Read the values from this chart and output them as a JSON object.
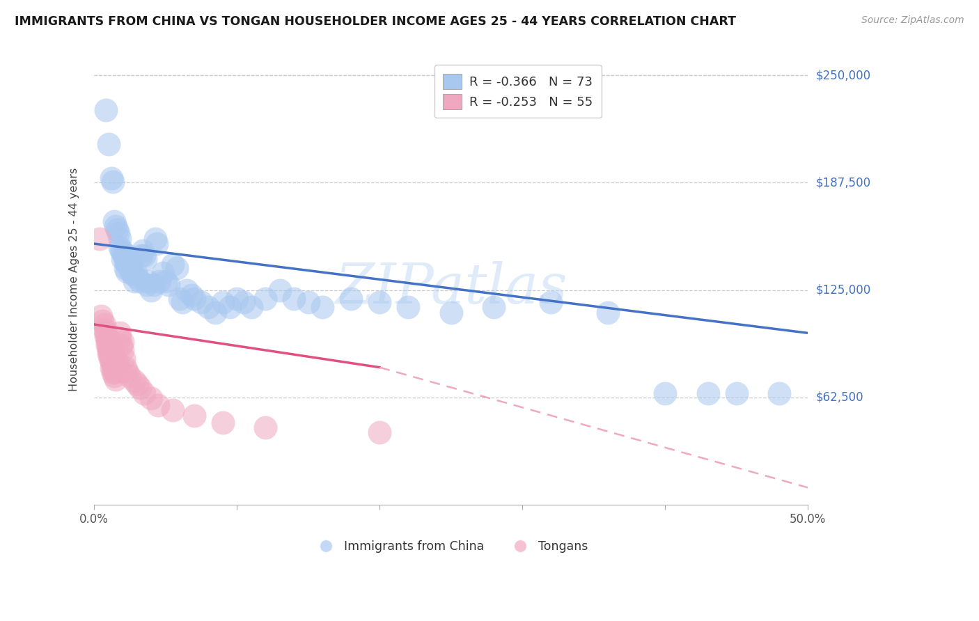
{
  "title": "IMMIGRANTS FROM CHINA VS TONGAN HOUSEHOLDER INCOME AGES 25 - 44 YEARS CORRELATION CHART",
  "source": "Source: ZipAtlas.com",
  "ylabel": "Householder Income Ages 25 - 44 years",
  "ytick_labels": [
    "$62,500",
    "$125,000",
    "$187,500",
    "$250,000"
  ],
  "ytick_values": [
    62500,
    125000,
    187500,
    250000
  ],
  "ylim": [
    0,
    262500
  ],
  "xlim": [
    0.0,
    0.5
  ],
  "watermark": "ZIPatlas",
  "legend_china_R": "-0.366",
  "legend_china_N": "73",
  "legend_tonga_R": "-0.253",
  "legend_tonga_N": "55",
  "china_color": "#a8c8f0",
  "tonga_color": "#f0a8c0",
  "china_line_color": "#4472c4",
  "tonga_line_color": "#e05080",
  "tonga_line_dashed_color": "#f0a8c0",
  "china_points": [
    [
      0.008,
      230000
    ],
    [
      0.01,
      210000
    ],
    [
      0.012,
      190000
    ],
    [
      0.013,
      188000
    ],
    [
      0.014,
      165000
    ],
    [
      0.015,
      162000
    ],
    [
      0.016,
      160000
    ],
    [
      0.017,
      158000
    ],
    [
      0.018,
      155000
    ],
    [
      0.018,
      150000
    ],
    [
      0.019,
      148000
    ],
    [
      0.02,
      147000
    ],
    [
      0.02,
      143000
    ],
    [
      0.021,
      145000
    ],
    [
      0.022,
      142000
    ],
    [
      0.022,
      138000
    ],
    [
      0.023,
      140000
    ],
    [
      0.023,
      136000
    ],
    [
      0.024,
      145000
    ],
    [
      0.025,
      143000
    ],
    [
      0.025,
      138000
    ],
    [
      0.026,
      140000
    ],
    [
      0.026,
      136000
    ],
    [
      0.027,
      134000
    ],
    [
      0.028,
      130000
    ],
    [
      0.029,
      135000
    ],
    [
      0.03,
      132000
    ],
    [
      0.032,
      130000
    ],
    [
      0.033,
      145000
    ],
    [
      0.034,
      148000
    ],
    [
      0.035,
      145000
    ],
    [
      0.036,
      143000
    ],
    [
      0.037,
      128000
    ],
    [
      0.038,
      130000
    ],
    [
      0.04,
      125000
    ],
    [
      0.042,
      128000
    ],
    [
      0.043,
      155000
    ],
    [
      0.044,
      152000
    ],
    [
      0.046,
      130000
    ],
    [
      0.048,
      135000
    ],
    [
      0.05,
      130000
    ],
    [
      0.052,
      128000
    ],
    [
      0.055,
      140000
    ],
    [
      0.058,
      138000
    ],
    [
      0.06,
      120000
    ],
    [
      0.062,
      118000
    ],
    [
      0.065,
      125000
    ],
    [
      0.068,
      122000
    ],
    [
      0.07,
      120000
    ],
    [
      0.075,
      118000
    ],
    [
      0.08,
      115000
    ],
    [
      0.085,
      112000
    ],
    [
      0.09,
      118000
    ],
    [
      0.095,
      115000
    ],
    [
      0.1,
      120000
    ],
    [
      0.105,
      118000
    ],
    [
      0.11,
      115000
    ],
    [
      0.12,
      120000
    ],
    [
      0.13,
      125000
    ],
    [
      0.14,
      120000
    ],
    [
      0.15,
      118000
    ],
    [
      0.16,
      115000
    ],
    [
      0.18,
      120000
    ],
    [
      0.2,
      118000
    ],
    [
      0.22,
      115000
    ],
    [
      0.25,
      112000
    ],
    [
      0.28,
      115000
    ],
    [
      0.32,
      118000
    ],
    [
      0.36,
      112000
    ],
    [
      0.4,
      65000
    ],
    [
      0.43,
      65000
    ],
    [
      0.45,
      65000
    ],
    [
      0.48,
      65000
    ]
  ],
  "tonga_points": [
    [
      0.004,
      155000
    ],
    [
      0.005,
      110000
    ],
    [
      0.006,
      107000
    ],
    [
      0.007,
      105000
    ],
    [
      0.007,
      102000
    ],
    [
      0.008,
      100000
    ],
    [
      0.008,
      98000
    ],
    [
      0.009,
      97000
    ],
    [
      0.009,
      95000
    ],
    [
      0.009,
      93000
    ],
    [
      0.01,
      95000
    ],
    [
      0.01,
      92000
    ],
    [
      0.01,
      90000
    ],
    [
      0.01,
      88000
    ],
    [
      0.011,
      95000
    ],
    [
      0.011,
      90000
    ],
    [
      0.011,
      87000
    ],
    [
      0.011,
      85000
    ],
    [
      0.012,
      90000
    ],
    [
      0.012,
      87000
    ],
    [
      0.012,
      83000
    ],
    [
      0.012,
      80000
    ],
    [
      0.013,
      87000
    ],
    [
      0.013,
      83000
    ],
    [
      0.013,
      80000
    ],
    [
      0.013,
      77000
    ],
    [
      0.014,
      82000
    ],
    [
      0.014,
      78000
    ],
    [
      0.014,
      75000
    ],
    [
      0.015,
      85000
    ],
    [
      0.015,
      80000
    ],
    [
      0.015,
      77000
    ],
    [
      0.015,
      73000
    ],
    [
      0.016,
      83000
    ],
    [
      0.017,
      80000
    ],
    [
      0.018,
      100000
    ],
    [
      0.018,
      97000
    ],
    [
      0.019,
      93000
    ],
    [
      0.02,
      95000
    ],
    [
      0.02,
      90000
    ],
    [
      0.021,
      85000
    ],
    [
      0.022,
      80000
    ],
    [
      0.023,
      78000
    ],
    [
      0.025,
      75000
    ],
    [
      0.028,
      72000
    ],
    [
      0.03,
      70000
    ],
    [
      0.032,
      68000
    ],
    [
      0.035,
      65000
    ],
    [
      0.04,
      62000
    ],
    [
      0.045,
      58000
    ],
    [
      0.055,
      55000
    ],
    [
      0.07,
      52000
    ],
    [
      0.09,
      48000
    ],
    [
      0.12,
      45000
    ],
    [
      0.2,
      42000
    ]
  ],
  "china_trendline": [
    [
      0.0,
      152000
    ],
    [
      0.5,
      100000
    ]
  ],
  "tonga_trendline_solid": [
    [
      0.0,
      105000
    ],
    [
      0.2,
      80000
    ]
  ],
  "tonga_trendline_dashed": [
    [
      0.2,
      80000
    ],
    [
      0.5,
      10000
    ]
  ]
}
